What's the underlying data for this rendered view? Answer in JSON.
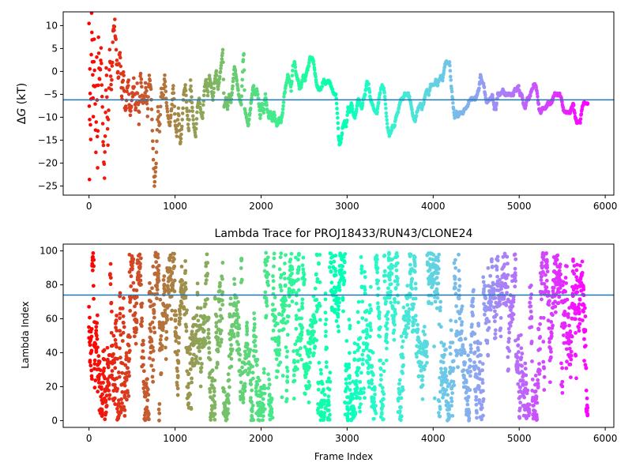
{
  "chart_data": [
    {
      "type": "scatter",
      "title": "",
      "xlabel": "",
      "ylabel": "ΔG (kT)",
      "ylabel_italic_part": "G",
      "xlim": [
        -300,
        6100
      ],
      "ylim": [
        -27,
        13
      ],
      "x_ticks": [
        0,
        1000,
        2000,
        3000,
        4000,
        5000,
        6000
      ],
      "x_tick_labels": [
        "0",
        "1000",
        "2000",
        "3000",
        "4000",
        "5000",
        "6000"
      ],
      "y_ticks": [
        -25,
        -20,
        -15,
        -10,
        -5,
        0,
        5,
        10
      ],
      "y_tick_labels": [
        "−25",
        "−20",
        "−15",
        "−10",
        "−5",
        "0",
        "5",
        "10"
      ],
      "hline": {
        "y": -6.2,
        "color": "#1f77b4"
      },
      "colormap": "rainbow_r",
      "x_range": [
        0,
        5800
      ],
      "series_points": [
        [
          0,
          10
        ],
        [
          5,
          -24
        ],
        [
          10,
          0
        ],
        [
          20,
          -16
        ],
        [
          30,
          12
        ],
        [
          40,
          3
        ],
        [
          50,
          -9
        ],
        [
          60,
          6
        ],
        [
          80,
          -17
        ],
        [
          90,
          2
        ],
        [
          100,
          -22
        ],
        [
          110,
          8
        ],
        [
          120,
          -3
        ],
        [
          140,
          4
        ],
        [
          160,
          -12
        ],
        [
          180,
          -23
        ],
        [
          200,
          1
        ],
        [
          220,
          -15
        ],
        [
          240,
          5
        ],
        [
          260,
          -5
        ],
        [
          280,
          9
        ],
        [
          300,
          10
        ],
        [
          320,
          3
        ],
        [
          340,
          -2
        ],
        [
          360,
          5
        ],
        [
          380,
          -6
        ],
        [
          400,
          0
        ],
        [
          420,
          -9
        ],
        [
          440,
          -5
        ],
        [
          460,
          -3
        ],
        [
          480,
          -10
        ],
        [
          500,
          -6
        ],
        [
          520,
          -2
        ],
        [
          540,
          -8
        ],
        [
          560,
          -4
        ],
        [
          580,
          -11
        ],
        [
          600,
          0
        ],
        [
          620,
          -5
        ],
        [
          640,
          -7
        ],
        [
          660,
          -3
        ],
        [
          680,
          -9
        ],
        [
          700,
          -1
        ],
        [
          720,
          -4
        ],
        [
          740,
          -15
        ],
        [
          760,
          -25
        ],
        [
          780,
          -20
        ],
        [
          800,
          -8
        ],
        [
          820,
          -13
        ],
        [
          840,
          -4
        ],
        [
          860,
          -6
        ],
        [
          880,
          -1
        ],
        [
          900,
          -7
        ],
        [
          920,
          -10
        ],
        [
          940,
          -12
        ],
        [
          960,
          -8
        ],
        [
          980,
          -3
        ],
        [
          1000,
          -11
        ],
        [
          1020,
          -14
        ],
        [
          1040,
          -8
        ],
        [
          1060,
          -16
        ],
        [
          1080,
          -12
        ],
        [
          1100,
          -5
        ],
        [
          1120,
          -3
        ],
        [
          1140,
          -9
        ],
        [
          1160,
          -13
        ],
        [
          1180,
          -2
        ],
        [
          1200,
          -8
        ],
        [
          1220,
          -12
        ],
        [
          1240,
          -14
        ],
        [
          1260,
          -8
        ],
        [
          1280,
          -6
        ],
        [
          1300,
          -9
        ],
        [
          1320,
          -10
        ],
        [
          1340,
          -4
        ],
        [
          1360,
          -2
        ],
        [
          1380,
          -5
        ],
        [
          1400,
          -1
        ],
        [
          1420,
          -3
        ],
        [
          1440,
          -6
        ],
        [
          1460,
          -2
        ],
        [
          1480,
          0
        ],
        [
          1500,
          -4
        ],
        [
          1520,
          -1
        ],
        [
          1540,
          2
        ],
        [
          1555,
          5
        ],
        [
          1570,
          -8
        ],
        [
          1590,
          -6
        ],
        [
          1610,
          -8
        ],
        [
          1630,
          -5
        ],
        [
          1650,
          -7
        ],
        [
          1670,
          -3
        ],
        [
          1690,
          1
        ],
        [
          1710,
          -1
        ],
        [
          1730,
          -4
        ],
        [
          1750,
          -6
        ],
        [
          1770,
          -7
        ],
        [
          1790,
          2
        ],
        [
          1800,
          4
        ],
        [
          1810,
          -8
        ],
        [
          1830,
          -10
        ],
        [
          1850,
          -12
        ],
        [
          1870,
          -9
        ],
        [
          1890,
          -6
        ],
        [
          1910,
          -3
        ],
        [
          1930,
          -5
        ],
        [
          1950,
          -4
        ],
        [
          1970,
          -6
        ],
        [
          1990,
          -10
        ],
        [
          2010,
          -7
        ],
        [
          2030,
          -9
        ],
        [
          2050,
          -5
        ],
        [
          2070,
          -8
        ],
        [
          2090,
          -10
        ],
        [
          2110,
          -9
        ],
        [
          2130,
          -11
        ],
        [
          2150,
          -9
        ],
        [
          2170,
          -11
        ],
        [
          2190,
          -12
        ],
        [
          2210,
          -10
        ],
        [
          2230,
          -11
        ],
        [
          2250,
          -9
        ],
        [
          2270,
          -5
        ],
        [
          2290,
          -3
        ],
        [
          2310,
          -1
        ],
        [
          2330,
          -2
        ],
        [
          2350,
          -4
        ],
        [
          2370,
          1
        ],
        [
          2390,
          2
        ],
        [
          2410,
          -1
        ],
        [
          2430,
          -2
        ],
        [
          2450,
          -4
        ],
        [
          2470,
          -3
        ],
        [
          2490,
          -1
        ],
        [
          2510,
          -2
        ],
        [
          2530,
          0
        ],
        [
          2550,
          1
        ],
        [
          2570,
          3
        ],
        [
          2590,
          3
        ],
        [
          2610,
          2
        ],
        [
          2630,
          -1
        ],
        [
          2650,
          -3
        ],
        [
          2670,
          -4
        ],
        [
          2690,
          -4
        ],
        [
          2710,
          -3
        ],
        [
          2730,
          -2
        ],
        [
          2750,
          -3
        ],
        [
          2770,
          -2
        ],
        [
          2790,
          -2
        ],
        [
          2810,
          -3
        ],
        [
          2830,
          -4
        ],
        [
          2850,
          -5
        ],
        [
          2870,
          -5
        ],
        [
          2890,
          -10
        ],
        [
          2900,
          -14
        ],
        [
          2910,
          -16
        ],
        [
          2930,
          -15
        ],
        [
          2950,
          -12
        ],
        [
          2970,
          -11
        ],
        [
          2990,
          -12
        ],
        [
          3010,
          -8
        ],
        [
          3030,
          -9
        ],
        [
          3050,
          -7
        ],
        [
          3070,
          -9
        ],
        [
          3090,
          -10
        ],
        [
          3110,
          -8
        ],
        [
          3130,
          -6
        ],
        [
          3150,
          -7
        ],
        [
          3170,
          -8
        ],
        [
          3190,
          -6
        ],
        [
          3210,
          -5
        ],
        [
          3230,
          -2
        ],
        [
          3250,
          -3
        ],
        [
          3270,
          -6
        ],
        [
          3290,
          -7
        ],
        [
          3310,
          -8
        ],
        [
          3330,
          -9
        ],
        [
          3350,
          -9
        ],
        [
          3370,
          -6
        ],
        [
          3390,
          -4
        ],
        [
          3410,
          -3
        ],
        [
          3430,
          -4
        ],
        [
          3450,
          -8
        ],
        [
          3470,
          -12
        ],
        [
          3490,
          -14
        ],
        [
          3510,
          -13
        ],
        [
          3530,
          -12
        ],
        [
          3550,
          -12
        ],
        [
          3570,
          -10
        ],
        [
          3590,
          -9
        ],
        [
          3610,
          -7
        ],
        [
          3630,
          -6
        ],
        [
          3650,
          -6
        ],
        [
          3670,
          -5
        ],
        [
          3690,
          -5
        ],
        [
          3710,
          -5
        ],
        [
          3730,
          -6
        ],
        [
          3750,
          -8
        ],
        [
          3770,
          -10
        ],
        [
          3790,
          -11
        ],
        [
          3810,
          -9
        ],
        [
          3830,
          -8
        ],
        [
          3850,
          -7
        ],
        [
          3870,
          -8
        ],
        [
          3890,
          -7
        ],
        [
          3910,
          -5
        ],
        [
          3930,
          -4
        ],
        [
          3950,
          -5
        ],
        [
          3970,
          -3
        ],
        [
          3990,
          -3
        ],
        [
          4010,
          -3
        ],
        [
          4030,
          -2
        ],
        [
          4050,
          -3
        ],
        [
          4070,
          -2
        ],
        [
          4090,
          -1
        ],
        [
          4110,
          -2
        ],
        [
          4130,
          1
        ],
        [
          4150,
          2
        ],
        [
          4170,
          2
        ],
        [
          4190,
          2
        ],
        [
          4210,
          -3
        ],
        [
          4230,
          -7
        ],
        [
          4250,
          -10
        ],
        [
          4270,
          -9
        ],
        [
          4290,
          -10
        ],
        [
          4310,
          -9
        ],
        [
          4330,
          -9
        ],
        [
          4350,
          -9
        ],
        [
          4370,
          -8
        ],
        [
          4390,
          -8
        ],
        [
          4410,
          -7
        ],
        [
          4430,
          -6
        ],
        [
          4450,
          -6
        ],
        [
          4470,
          -6
        ],
        [
          4490,
          -6
        ],
        [
          4510,
          -5
        ],
        [
          4530,
          -4
        ],
        [
          4550,
          -1
        ],
        [
          4570,
          -2
        ],
        [
          4590,
          -3
        ],
        [
          4610,
          -6
        ],
        [
          4630,
          -7
        ],
        [
          4650,
          -6
        ],
        [
          4670,
          -6
        ],
        [
          4690,
          -5
        ],
        [
          4710,
          -8
        ],
        [
          4730,
          -8
        ],
        [
          4750,
          -5
        ],
        [
          4770,
          -5
        ],
        [
          4790,
          -5
        ],
        [
          4810,
          -4
        ],
        [
          4830,
          -5
        ],
        [
          4850,
          -5
        ],
        [
          4870,
          -5
        ],
        [
          4890,
          -5
        ],
        [
          4910,
          -5
        ],
        [
          4930,
          -5
        ],
        [
          4950,
          -4
        ],
        [
          4970,
          -4
        ],
        [
          4990,
          -3
        ],
        [
          5010,
          -5
        ],
        [
          5030,
          -5
        ],
        [
          5050,
          -7
        ],
        [
          5070,
          -8
        ],
        [
          5090,
          -6
        ],
        [
          5110,
          -6
        ],
        [
          5130,
          -5
        ],
        [
          5150,
          -4
        ],
        [
          5170,
          -3
        ],
        [
          5190,
          -3
        ],
        [
          5210,
          -5
        ],
        [
          5230,
          -8
        ],
        [
          5250,
          -9
        ],
        [
          5270,
          -8
        ],
        [
          5290,
          -8
        ],
        [
          5310,
          -8
        ],
        [
          5330,
          -7
        ],
        [
          5350,
          -7
        ],
        [
          5370,
          -7
        ],
        [
          5390,
          -6
        ],
        [
          5410,
          -5
        ],
        [
          5430,
          -5
        ],
        [
          5450,
          -5
        ],
        [
          5470,
          -5
        ],
        [
          5490,
          -6
        ],
        [
          5510,
          -8
        ],
        [
          5530,
          -9
        ],
        [
          5550,
          -9
        ],
        [
          5570,
          -9
        ],
        [
          5590,
          -9
        ],
        [
          5610,
          -8
        ],
        [
          5630,
          -7
        ],
        [
          5650,
          -10
        ],
        [
          5670,
          -11
        ],
        [
          5690,
          -11
        ],
        [
          5710,
          -11
        ],
        [
          5730,
          -8
        ],
        [
          5750,
          -7
        ],
        [
          5770,
          -7
        ],
        [
          5790,
          -7
        ],
        [
          5800,
          -7
        ]
      ]
    },
    {
      "type": "scatter",
      "title": "Lambda Trace for PROJ18433/RUN43/CLONE24",
      "xlabel": "Frame Index",
      "ylabel": "Lambda Index",
      "xlim": [
        -300,
        6100
      ],
      "ylim": [
        -4,
        104
      ],
      "x_ticks": [
        0,
        1000,
        2000,
        3000,
        4000,
        5000,
        6000
      ],
      "x_tick_labels": [
        "0",
        "1000",
        "2000",
        "3000",
        "4000",
        "5000",
        "6000"
      ],
      "y_ticks": [
        0,
        20,
        40,
        60,
        80,
        100
      ],
      "y_tick_labels": [
        "0",
        "20",
        "40",
        "60",
        "80",
        "100"
      ],
      "hline": {
        "y": 74,
        "color": "#1f77b4"
      },
      "colormap": "rainbow_r",
      "x_range": [
        0,
        5800
      ],
      "lambda_range": [
        0,
        99
      ],
      "point_count": 3200
    }
  ]
}
